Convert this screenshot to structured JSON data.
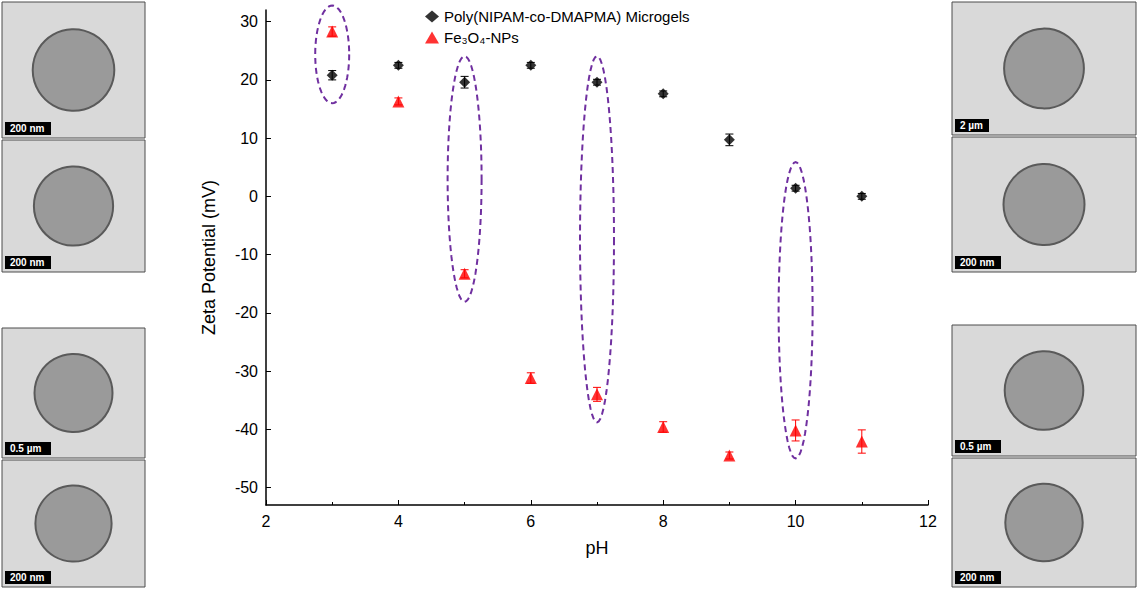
{
  "chart_data": {
    "type": "scatter",
    "x_label": "pH",
    "y_label": "Zeta Potential (mV)",
    "xlim": [
      2,
      12
    ],
    "xticks": [
      2,
      4,
      6,
      8,
      10,
      12
    ],
    "ylim": [
      -53,
      32
    ],
    "yticks": [
      -50,
      -40,
      -30,
      -20,
      -10,
      0,
      10,
      20,
      30
    ],
    "grid": false,
    "legend": "top",
    "x": [
      3,
      4,
      5,
      6,
      7,
      8,
      9,
      10,
      11
    ],
    "series": [
      {
        "name": "Poly(NIPAM-co-DMAPMA) Microgels",
        "color": "#000000",
        "marker": "diamond",
        "values": [
          20.8,
          22.5,
          19.6,
          22.5,
          19.6,
          17.6,
          9.7,
          1.4,
          0.0
        ],
        "errors": [
          0.8,
          0.5,
          1.0,
          0.5,
          0.5,
          0.5,
          1.0,
          0.5,
          0.5
        ]
      },
      {
        "name": "Fe₃O₄-NPs",
        "color": "#ff0000",
        "marker": "triangle",
        "values": [
          28.3,
          16.3,
          -13.3,
          -31.2,
          -34.0,
          -39.6,
          -44.5,
          -40.2,
          -42.1
        ],
        "errors": [
          0.8,
          0.6,
          0.7,
          0.9,
          1.2,
          0.9,
          0.6,
          1.8,
          2.0
        ]
      }
    ],
    "annotations": [
      {
        "x": 3,
        "scale_bars": [
          "200 nm",
          "200 nm"
        ]
      },
      {
        "x": 5,
        "scale_bars": [
          "0.5 µm",
          "200 nm"
        ]
      },
      {
        "x": 7,
        "scale_bars": [
          "2 µm",
          "200 nm"
        ]
      },
      {
        "x": 10,
        "scale_bars": [
          "0.5 µm",
          "200 nm"
        ]
      }
    ]
  }
}
